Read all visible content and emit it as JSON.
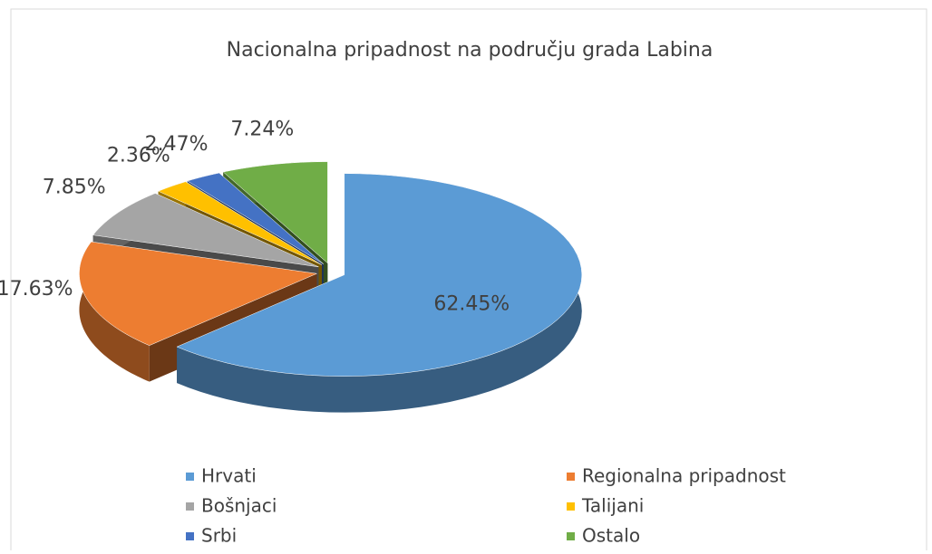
{
  "chart_data": {
    "type": "pie3d",
    "title": "Nacionalna pripadnost na području grada Labina",
    "categories": [
      "Hrvati",
      "Regionalna pripadnost",
      "Bošnjaci",
      "Talijani",
      "Srbi",
      "Ostalo"
    ],
    "values": [
      62.45,
      17.63,
      7.85,
      2.36,
      2.47,
      7.24
    ],
    "value_labels": [
      "62.45%",
      "17.63%",
      "7.85%",
      "2.36%",
      "2.47%",
      "7.24%"
    ],
    "colors": [
      "#5b9bd5",
      "#ed7d31",
      "#a5a5a5",
      "#ffc000",
      "#4472c4",
      "#70ad47"
    ],
    "legend": "bottom"
  }
}
